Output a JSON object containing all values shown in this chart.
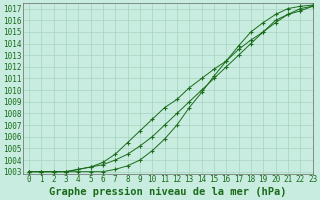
{
  "title": "Graphe pression niveau de la mer (hPa)",
  "background_color": "#c8ece0",
  "grid_color": "#a8d4c0",
  "line_color": "#1a6b1a",
  "xlim": [
    -0.5,
    23
  ],
  "ylim": [
    1002.8,
    1017.5
  ],
  "yticks": [
    1003,
    1004,
    1005,
    1006,
    1007,
    1008,
    1009,
    1010,
    1011,
    1012,
    1013,
    1014,
    1015,
    1016,
    1017
  ],
  "xticks": [
    0,
    1,
    2,
    3,
    4,
    5,
    6,
    7,
    8,
    9,
    10,
    11,
    12,
    13,
    14,
    15,
    16,
    17,
    18,
    19,
    20,
    21,
    22,
    23
  ],
  "series1": [
    1003.0,
    1003.0,
    1003.0,
    1003.0,
    1003.2,
    1003.4,
    1003.6,
    1004.0,
    1004.5,
    1005.2,
    1006.0,
    1007.0,
    1008.0,
    1009.0,
    1010.0,
    1011.0,
    1012.0,
    1013.0,
    1014.0,
    1015.0,
    1016.0,
    1016.5,
    1016.8,
    1017.2
  ],
  "series2": [
    1003.0,
    1003.0,
    1003.0,
    1003.0,
    1003.2,
    1003.4,
    1003.8,
    1004.5,
    1005.5,
    1006.5,
    1007.5,
    1008.5,
    1009.2,
    1010.2,
    1011.0,
    1011.8,
    1012.5,
    1013.5,
    1014.3,
    1015.0,
    1015.8,
    1016.5,
    1017.0,
    1017.2
  ],
  "series3": [
    1003.0,
    1003.0,
    1003.0,
    1003.0,
    1003.0,
    1003.0,
    1003.0,
    1003.2,
    1003.5,
    1004.0,
    1004.8,
    1005.8,
    1007.0,
    1008.5,
    1009.8,
    1011.2,
    1012.5,
    1013.8,
    1015.0,
    1015.8,
    1016.5,
    1017.0,
    1017.2,
    1017.3
  ],
  "title_fontsize": 7.5,
  "tick_fontsize": 5.5
}
